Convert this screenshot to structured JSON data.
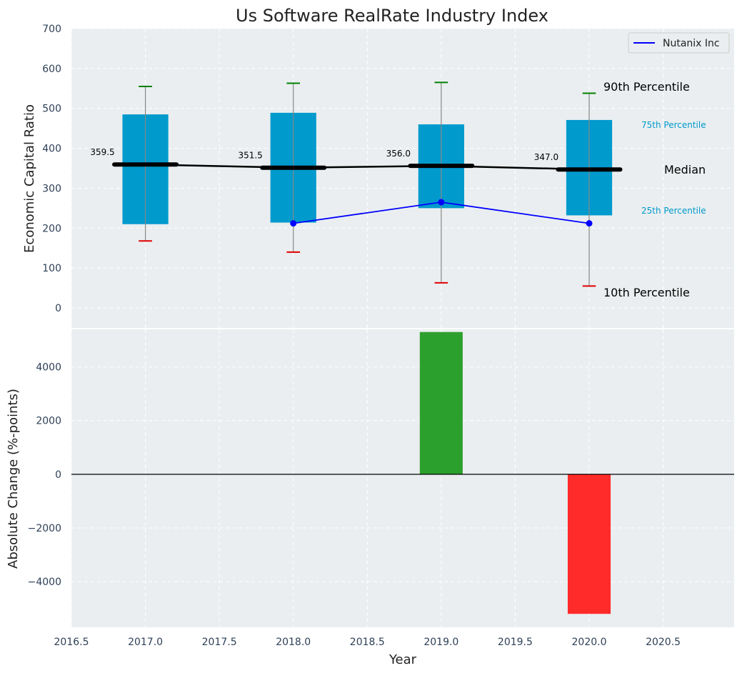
{
  "chart_data": {
    "type": "box",
    "title": "Us Software RealRate Industry Index",
    "xlabel": "Year",
    "x_tick_labels": [
      "2016.5",
      "2017.0",
      "2017.5",
      "2018.0",
      "2018.5",
      "2019.0",
      "2019.5",
      "2020.0",
      "2020.5"
    ],
    "x_ticks": [
      2016.5,
      2017.0,
      2017.5,
      2018.0,
      2018.5,
      2019.0,
      2019.5,
      2020.0,
      2020.5
    ],
    "xlim": [
      2016.5,
      2020.98
    ],
    "grid": true,
    "colors": {
      "background": "#eaeef0",
      "box": "#009acd",
      "median": "#000000",
      "p90": "#008000",
      "p10": "#e00000",
      "company": "#0000ff",
      "increase": "#2ca02c",
      "decrease": "#ff2a2a",
      "tick_text": "#2e4057"
    },
    "top_panel": {
      "ylabel": "Economic Capital Ratio",
      "ylim": [
        -50,
        700
      ],
      "y_ticks": [
        0,
        100,
        200,
        300,
        400,
        500,
        600,
        700
      ],
      "y_tick_labels": [
        "0",
        "100",
        "200",
        "300",
        "400",
        "500",
        "600",
        "700"
      ],
      "years": [
        2017,
        2018,
        2019,
        2020
      ],
      "p10": [
        168,
        140,
        63,
        55
      ],
      "p25": [
        210,
        214,
        250,
        232
      ],
      "median": [
        359.5,
        351.5,
        356.0,
        347.0
      ],
      "median_labels": [
        "359.5",
        "351.5",
        "356.0",
        "347.0"
      ],
      "p75": [
        485,
        489,
        460,
        471
      ],
      "p90": [
        555,
        563,
        565,
        538
      ],
      "company": {
        "name": "Nutanix Inc",
        "x": [
          2018,
          2019,
          2020
        ],
        "y": [
          212,
          265,
          212
        ]
      },
      "legend_position": "top-right",
      "annotations": {
        "p90": "90th Percentile",
        "p75": "75th Percentile",
        "median": "Median",
        "p25": "25th Percentile",
        "p10": "10th Percentile"
      }
    },
    "bottom_panel": {
      "ylabel": "Absolute Change (%-points)",
      "ylim": [
        -5700,
        5400
      ],
      "y_ticks": [
        -4000,
        -2000,
        0,
        2000,
        4000
      ],
      "y_tick_labels": [
        "−4000",
        "−2000",
        "0",
        "2000",
        "4000"
      ],
      "bars": [
        {
          "x": 2019,
          "value": 5300
        },
        {
          "x": 2020,
          "value": -5200
        }
      ]
    }
  }
}
